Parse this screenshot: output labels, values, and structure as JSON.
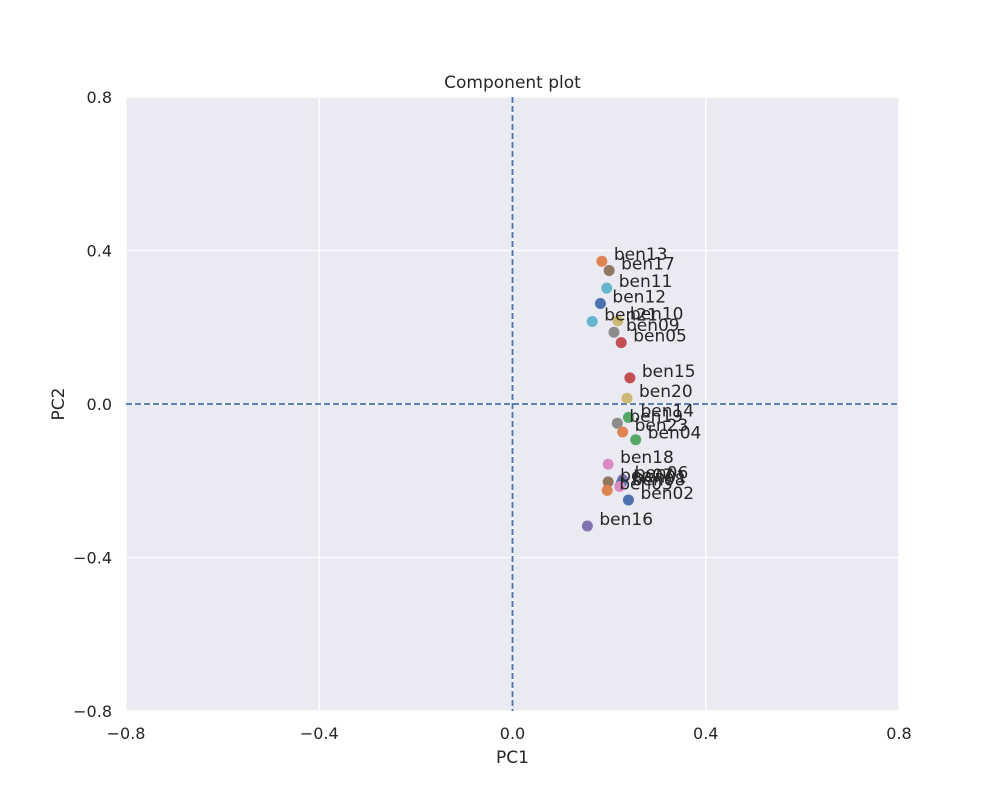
{
  "chart_data": {
    "type": "scatter",
    "title": "Component plot",
    "xlabel": "PC1",
    "ylabel": "PC2",
    "xlim": [
      -0.8,
      0.8
    ],
    "ylim": [
      -0.8,
      0.8
    ],
    "xticks": [
      -0.8,
      -0.4,
      0.0,
      0.4,
      0.8
    ],
    "yticks": [
      -0.8,
      -0.4,
      0.0,
      0.4,
      0.8
    ],
    "xtick_labels": [
      "−0.8",
      "−0.4",
      "0.0",
      "0.4",
      "0.8"
    ],
    "ytick_labels": [
      "−0.8",
      "−0.4",
      "0.0",
      "0.4",
      "0.8"
    ],
    "grid": true,
    "reference_lines": {
      "x": 0.0,
      "y": 0.0,
      "style": "dashed",
      "color": "#4c72b0"
    },
    "background_color": "#eaeaf2",
    "points": [
      {
        "label": "ben13",
        "x": 0.185,
        "y": 0.372,
        "color": "#dd8452"
      },
      {
        "label": "ben17",
        "x": 0.2,
        "y": 0.348,
        "color": "#937860"
      },
      {
        "label": "ben11",
        "x": 0.195,
        "y": 0.302,
        "color": "#64b5cd"
      },
      {
        "label": "ben12",
        "x": 0.182,
        "y": 0.262,
        "color": "#4c72b0"
      },
      {
        "label": "ben21",
        "x": 0.165,
        "y": 0.215,
        "color": "#64b5cd"
      },
      {
        "label": "ben10",
        "x": 0.218,
        "y": 0.217,
        "color": "#ccb974"
      },
      {
        "label": "ben09",
        "x": 0.21,
        "y": 0.187,
        "color": "#8c8c8c"
      },
      {
        "label": "ben05",
        "x": 0.225,
        "y": 0.16,
        "color": "#c44e52"
      },
      {
        "label": "ben15",
        "x": 0.243,
        "y": 0.068,
        "color": "#c44e52"
      },
      {
        "label": "ben20",
        "x": 0.237,
        "y": 0.015,
        "color": "#ccb974"
      },
      {
        "label": "ben14",
        "x": 0.24,
        "y": -0.035,
        "color": "#55a868"
      },
      {
        "label": "ben19",
        "x": 0.217,
        "y": -0.05,
        "color": "#8c8c8c"
      },
      {
        "label": "ben23",
        "x": 0.228,
        "y": -0.073,
        "color": "#dd8452"
      },
      {
        "label": "ben04",
        "x": 0.255,
        "y": -0.093,
        "color": "#55a868"
      },
      {
        "label": "ben18",
        "x": 0.198,
        "y": -0.157,
        "color": "#da8bc3"
      },
      {
        "label": "ben06",
        "x": 0.228,
        "y": -0.197,
        "color": "#8172b3"
      },
      {
        "label": "ben07",
        "x": 0.198,
        "y": -0.203,
        "color": "#937860"
      },
      {
        "label": "ben01",
        "x": 0.225,
        "y": -0.207,
        "color": "#4c72b0"
      },
      {
        "label": "ben08",
        "x": 0.222,
        "y": -0.215,
        "color": "#da8bc3"
      },
      {
        "label": "ben03",
        "x": 0.196,
        "y": -0.225,
        "color": "#dd8452"
      },
      {
        "label": "ben02",
        "x": 0.24,
        "y": -0.25,
        "color": "#4c72b0"
      },
      {
        "label": "ben16",
        "x": 0.155,
        "y": -0.318,
        "color": "#8172b3"
      }
    ]
  }
}
